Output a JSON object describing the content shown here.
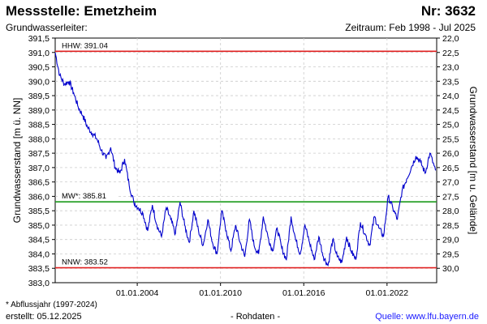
{
  "header": {
    "title": "Messstelle: Emetzheim",
    "nr": "Nr: 3632",
    "aquifer": "Grundwasserleiter:",
    "period": "Zeitraum: Feb 1998 - Jul 2025"
  },
  "footer": {
    "footnote": "* Abflussjahr (1997-2024)",
    "created": "erstellt:  05.12.2025",
    "raw": "- Rohdaten -",
    "source": "Quelle:  www.lfu.bayern.de"
  },
  "colors": {
    "series": "#0000cc",
    "hhw": "#e02020",
    "nnw": "#e02020",
    "mw": "#1a9a1a",
    "grid": "#cccccc"
  },
  "chart_data": {
    "type": "line",
    "ylabel": "Grundwasserstand [m ü. NN]",
    "y2label": "Grundwasserstand [m u. Gelände]",
    "xlim": [
      "1998-02-01",
      "2025-07-31"
    ],
    "ylim": [
      383.0,
      391.5
    ],
    "y2lim": [
      22.0,
      30.5
    ],
    "xticks": [
      {
        "date": "2004-01-01",
        "label": "01.01.2004"
      },
      {
        "date": "2010-01-01",
        "label": "01.01.2010"
      },
      {
        "date": "2016-01-01",
        "label": "01.01.2016"
      },
      {
        "date": "2022-01-01",
        "label": "01.01.2022"
      }
    ],
    "yticks": [
      "383,0",
      "383,5",
      "384,0",
      "384,5",
      "385,0",
      "385,5",
      "386,0",
      "386,5",
      "387,0",
      "387,5",
      "388,0",
      "388,5",
      "389,0",
      "389,5",
      "390,0",
      "390,5",
      "391,0",
      "391,5"
    ],
    "y2ticks": [
      "22,0",
      "22,5",
      "23,0",
      "23,5",
      "24,0",
      "24,5",
      "25,0",
      "25,5",
      "26,0",
      "26,5",
      "27,0",
      "27,5",
      "28,0",
      "28,5",
      "29,0",
      "29,5",
      "30,0"
    ],
    "grid": true,
    "reference_lines": [
      {
        "label": "HHW: 391.04",
        "value": 391.04,
        "role": "hhw"
      },
      {
        "label": "MW*: 385.81",
        "value": 385.81,
        "role": "mw"
      },
      {
        "label": "NNW: 383.52",
        "value": 383.52,
        "role": "nnw"
      }
    ],
    "series": [
      {
        "x": [
          "1998-02",
          "1998-06",
          "1998-10",
          "1999-02",
          "1999-06",
          "1999-10",
          "2000-02",
          "2000-06",
          "2000-10",
          "2001-02",
          "2001-06",
          "2001-10",
          "2002-02",
          "2002-06",
          "2002-10",
          "2003-02",
          "2003-06",
          "2003-10",
          "2004-02",
          "2004-06",
          "2004-10",
          "2005-02",
          "2005-06",
          "2005-10",
          "2006-02",
          "2006-06",
          "2006-10",
          "2007-02",
          "2007-06",
          "2007-10",
          "2008-02",
          "2008-06",
          "2008-10",
          "2009-02",
          "2009-06",
          "2009-10",
          "2010-02",
          "2010-06",
          "2010-10",
          "2011-02",
          "2011-06",
          "2011-10",
          "2012-02",
          "2012-06",
          "2012-10",
          "2013-02",
          "2013-06",
          "2013-10",
          "2014-02",
          "2014-06",
          "2014-10",
          "2015-02",
          "2015-06",
          "2015-10",
          "2016-02",
          "2016-06",
          "2016-10",
          "2017-02",
          "2017-06",
          "2017-10",
          "2018-02",
          "2018-06",
          "2018-10",
          "2019-02",
          "2019-06",
          "2019-10",
          "2020-02",
          "2020-06",
          "2020-10",
          "2021-02",
          "2021-06",
          "2021-10",
          "2022-02",
          "2022-06",
          "2022-10",
          "2023-02",
          "2023-06",
          "2023-10",
          "2024-02",
          "2024-06",
          "2024-10",
          "2025-02",
          "2025-07"
        ],
        "y": [
          391.0,
          390.2,
          389.9,
          390.0,
          389.6,
          389.1,
          388.8,
          388.4,
          388.2,
          388.0,
          387.6,
          387.3,
          387.7,
          387.0,
          386.8,
          387.3,
          386.4,
          385.8,
          385.6,
          385.4,
          384.8,
          385.7,
          385.0,
          384.6,
          385.6,
          385.2,
          384.7,
          385.8,
          385.0,
          384.4,
          385.5,
          384.8,
          384.3,
          385.2,
          384.4,
          384.0,
          385.5,
          384.8,
          384.1,
          385.0,
          384.4,
          383.9,
          385.2,
          384.3,
          384.0,
          385.3,
          384.6,
          384.1,
          384.9,
          384.2,
          383.8,
          385.3,
          384.5,
          384.0,
          385.0,
          384.4,
          383.8,
          384.6,
          383.9,
          383.6,
          384.5,
          383.9,
          383.7,
          384.6,
          384.1,
          383.8,
          385.1,
          384.7,
          384.3,
          385.3,
          384.9,
          384.6,
          386.0,
          385.6,
          385.2,
          386.2,
          386.6,
          387.0,
          387.4,
          387.2,
          386.8,
          387.5,
          386.9
        ]
      }
    ]
  }
}
